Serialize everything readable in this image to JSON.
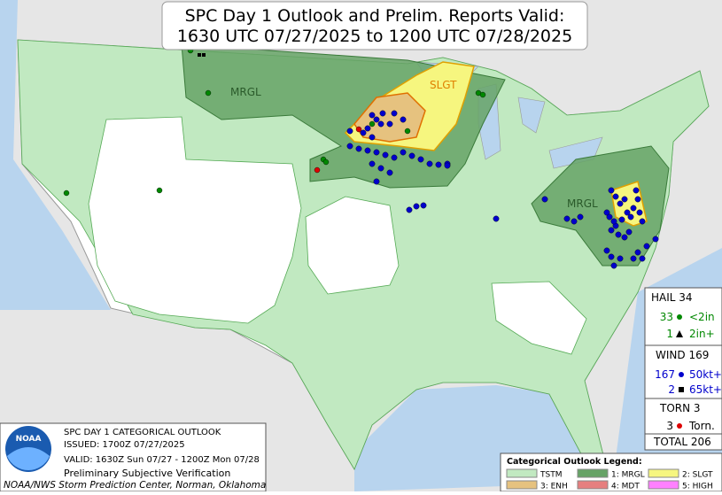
{
  "header": {
    "title_line1": "SPC Day 1 Outlook and Prelim. Reports Valid:",
    "title_line2": "1630 UTC 07/27/2025 to 1200 UTC 07/28/2025"
  },
  "map_labels": {
    "north_mrgl": "MRGL",
    "north_slgt": "SLGT",
    "east_mrgl": "MRGL"
  },
  "reports": {
    "hail": {
      "label": "HAIL",
      "total": 34,
      "rows": [
        {
          "count": 33,
          "label": "<2in"
        },
        {
          "count": 1,
          "label": "2in+"
        }
      ]
    },
    "wind": {
      "label": "WIND",
      "total": 169,
      "rows": [
        {
          "count": 167,
          "label": "50kt+"
        },
        {
          "count": 2,
          "label": "65kt+"
        }
      ]
    },
    "tornado": {
      "label": "TORN",
      "total": 3,
      "rows": [
        {
          "count": 3,
          "label": "Torn."
        }
      ]
    },
    "total": {
      "label": "TOTAL",
      "value": 206
    }
  },
  "info": {
    "logo": "NOAA",
    "lines": [
      "SPC DAY 1 CATEGORICAL OUTLOOK",
      "ISSUED: 1700Z 07/27/2025",
      "VALID: 1630Z Sun 07/27 - 1200Z Mon 07/28",
      "Preliminary Subjective Verification",
      "NOAA/NWS Storm Prediction Center, Norman, Oklahoma"
    ]
  },
  "legend": {
    "title": "Categorical Outlook Legend:",
    "items": [
      {
        "label": "TSTM",
        "color": "#c1e9c1"
      },
      {
        "label": "1: MRGL",
        "color": "#66a366"
      },
      {
        "label": "2: SLGT",
        "color": "#f6f67f"
      },
      {
        "label": "3: ENH",
        "color": "#e6c27f"
      },
      {
        "label": "4: MDT",
        "color": "#e67f7f"
      },
      {
        "label": "5: HIGH",
        "color": "#ff80ff"
      }
    ]
  }
}
